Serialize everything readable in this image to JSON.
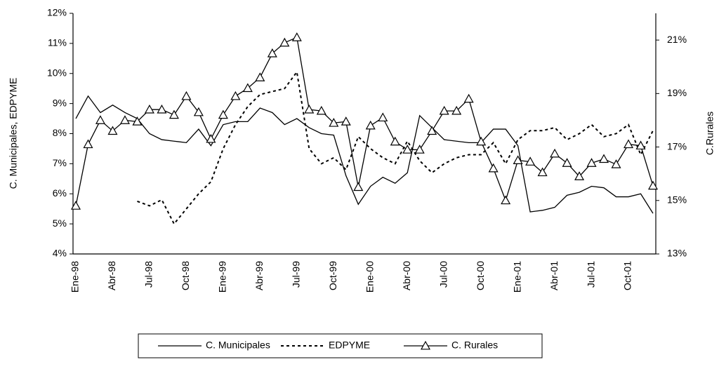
{
  "chart_data": {
    "type": "line",
    "y_label": "C. Municipales, EDPYME",
    "y2_label": "C.Rurales",
    "categories": [
      "Ene-98",
      null,
      null,
      "Abr-98",
      null,
      null,
      "Jul-98",
      null,
      null,
      "Oct-98",
      null,
      null,
      "Ene-99",
      null,
      null,
      "Abr-99",
      null,
      null,
      "Jul-99",
      null,
      null,
      "Oct-99",
      null,
      null,
      "Ene-00",
      null,
      null,
      "Abr-00",
      null,
      null,
      "Jul-00",
      null,
      null,
      "Oct-00",
      null,
      null,
      "Ene-01",
      null,
      null,
      "Abr-01",
      null,
      null,
      "Jul-01",
      null,
      null,
      "Oct-01",
      null,
      null
    ],
    "ylim": [
      4,
      12
    ],
    "yticks": [
      {
        "value": 4,
        "label": "4%"
      },
      {
        "value": 5,
        "label": "5%"
      },
      {
        "value": 6,
        "label": "6%"
      },
      {
        "value": 7,
        "label": "7%"
      },
      {
        "value": 8,
        "label": "8%"
      },
      {
        "value": 9,
        "label": "9%"
      },
      {
        "value": 10,
        "label": "10%"
      },
      {
        "value": 11,
        "label": "11%"
      },
      {
        "value": 12,
        "label": "12%"
      }
    ],
    "y2lim": [
      13,
      22
    ],
    "y2ticks": [
      {
        "value": 13,
        "label": "13%"
      },
      {
        "value": 15,
        "label": "15%"
      },
      {
        "value": 17,
        "label": "17%"
      },
      {
        "value": 19,
        "label": "19%"
      },
      {
        "value": 21,
        "label": "21%"
      }
    ],
    "grid": false,
    "legend": "bottom",
    "series": [
      {
        "name": "C. Municipales",
        "color": "#000000",
        "style": "solid",
        "marker": "none",
        "values": [
          8.5,
          9.25,
          8.7,
          8.95,
          8.7,
          8.5,
          8.0,
          7.8,
          7.75,
          7.7,
          8.15,
          7.6,
          8.3,
          8.4,
          8.4,
          8.85,
          8.7,
          8.3,
          8.5,
          8.2,
          8.0,
          7.95,
          6.6,
          5.65,
          6.25,
          6.55,
          6.35,
          6.7,
          8.6,
          8.2,
          7.8,
          7.75,
          7.7,
          7.7,
          8.15,
          8.15,
          7.6,
          5.4,
          5.45,
          5.55,
          5.95,
          6.05,
          6.25,
          6.2,
          5.9,
          5.9,
          6.0,
          5.35
        ]
      },
      {
        "name": "EDPYME",
        "color": "#000000",
        "style": "dotted",
        "marker": "none",
        "values": [
          null,
          null,
          null,
          null,
          null,
          5.75,
          5.6,
          5.8,
          5.0,
          5.5,
          6.0,
          6.4,
          7.5,
          8.3,
          8.9,
          9.3,
          9.4,
          9.5,
          10.05,
          7.5,
          7.0,
          7.2,
          6.8,
          7.9,
          7.5,
          7.2,
          7.0,
          7.75,
          7.1,
          6.7,
          7.0,
          7.2,
          7.3,
          7.3,
          7.7,
          7.0,
          7.8,
          8.1,
          8.1,
          8.2,
          7.8,
          8.0,
          8.3,
          7.9,
          8.0,
          8.3,
          7.3,
          8.1
        ]
      },
      {
        "name": "C. Rurales",
        "color": "#000000",
        "style": "solid",
        "marker": "triangle",
        "axis": "y2",
        "values": [
          14.8,
          17.1,
          18.0,
          17.6,
          18.0,
          17.95,
          18.4,
          18.4,
          18.2,
          18.9,
          18.3,
          17.3,
          18.2,
          18.9,
          19.2,
          19.6,
          20.5,
          20.9,
          21.1,
          18.4,
          18.35,
          17.9,
          17.95,
          15.5,
          17.8,
          18.1,
          17.2,
          16.9,
          16.9,
          17.6,
          18.35,
          18.35,
          18.8,
          17.2,
          16.2,
          15.0,
          16.5,
          16.45,
          16.05,
          16.75,
          16.4,
          15.9,
          16.4,
          16.55,
          16.35,
          17.1,
          17.05,
          15.55
        ]
      }
    ]
  }
}
